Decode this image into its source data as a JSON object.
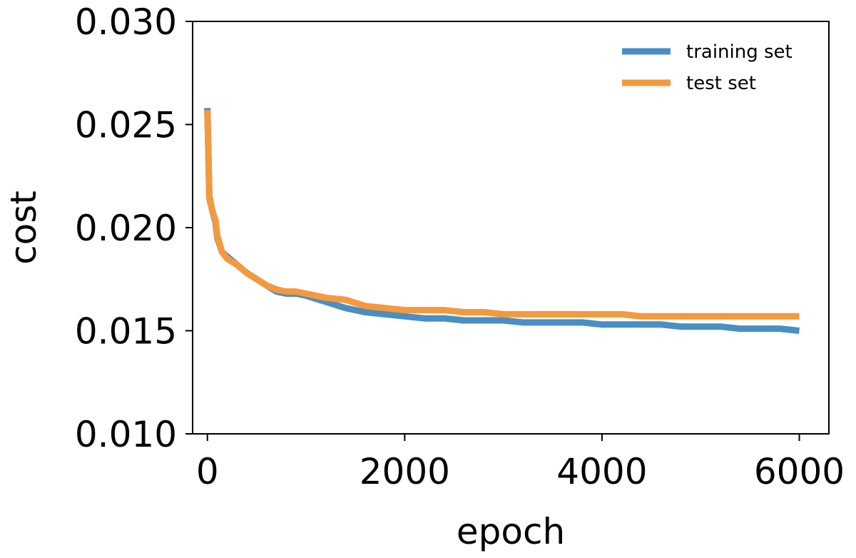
{
  "chart_data": {
    "type": "line",
    "xlabel": "epoch",
    "ylabel": "cost",
    "xlim": [
      -150,
      6300
    ],
    "ylim": [
      0.01,
      0.03
    ],
    "xticks": [
      0,
      2000,
      4000,
      6000
    ],
    "xtick_labels": [
      "0",
      "2000",
      "4000",
      "6000"
    ],
    "yticks": [
      0.01,
      0.015,
      0.02,
      0.025,
      0.03
    ],
    "ytick_labels": [
      "0.010",
      "0.015",
      "0.020",
      "0.025",
      "0.030"
    ],
    "grid": false,
    "legend_position": "top-right",
    "series": [
      {
        "name": "training set",
        "color": "#4a8ec4",
        "x": [
          0,
          20,
          50,
          80,
          100,
          150,
          200,
          300,
          400,
          500,
          600,
          700,
          800,
          900,
          1000,
          1200,
          1400,
          1600,
          1800,
          2000,
          2200,
          2400,
          2600,
          2800,
          3000,
          3200,
          3400,
          3600,
          3800,
          4000,
          4200,
          4400,
          4600,
          4800,
          5000,
          5200,
          5400,
          5600,
          5800,
          6000
        ],
        "y": [
          0.0258,
          0.0215,
          0.0208,
          0.0203,
          0.0195,
          0.0188,
          0.0186,
          0.0182,
          0.0178,
          0.0175,
          0.0172,
          0.0169,
          0.0168,
          0.0168,
          0.0167,
          0.0164,
          0.0161,
          0.0159,
          0.0158,
          0.0157,
          0.0156,
          0.0156,
          0.0155,
          0.0155,
          0.0155,
          0.0154,
          0.0154,
          0.0154,
          0.0154,
          0.0153,
          0.0153,
          0.0153,
          0.0153,
          0.0152,
          0.0152,
          0.0152,
          0.0151,
          0.0151,
          0.0151,
          0.015
        ]
      },
      {
        "name": "test set",
        "color": "#f39a3e",
        "x": [
          0,
          20,
          50,
          80,
          100,
          150,
          200,
          300,
          400,
          500,
          600,
          700,
          800,
          900,
          1000,
          1200,
          1400,
          1600,
          1800,
          2000,
          2200,
          2400,
          2600,
          2800,
          3000,
          3200,
          3400,
          3600,
          3800,
          4000,
          4200,
          4400,
          4600,
          4800,
          5000,
          5200,
          5400,
          5600,
          5800,
          6000
        ],
        "y": [
          0.0257,
          0.0214,
          0.0208,
          0.0204,
          0.0196,
          0.0188,
          0.0185,
          0.0182,
          0.0178,
          0.0175,
          0.0172,
          0.017,
          0.0169,
          0.0169,
          0.0168,
          0.0166,
          0.0165,
          0.0162,
          0.0161,
          0.016,
          0.016,
          0.016,
          0.0159,
          0.0159,
          0.0158,
          0.0158,
          0.0158,
          0.0158,
          0.0158,
          0.0158,
          0.0158,
          0.0157,
          0.0157,
          0.0157,
          0.0157,
          0.0157,
          0.0157,
          0.0157,
          0.0157,
          0.0157
        ]
      }
    ]
  }
}
